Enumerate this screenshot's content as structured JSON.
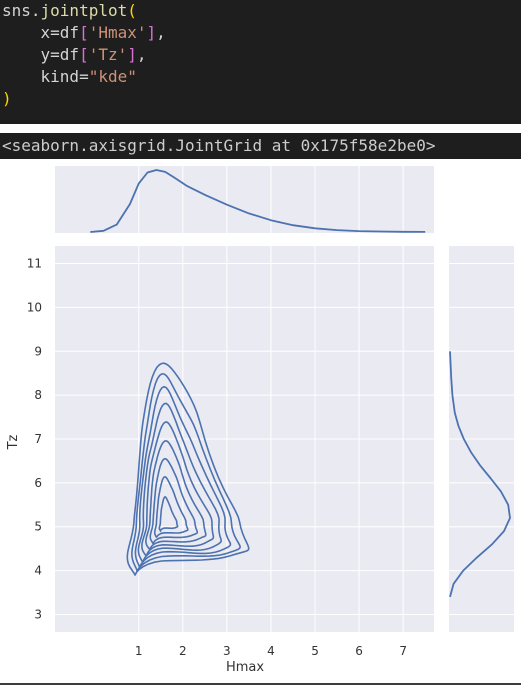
{
  "code_cell": {
    "lines": [
      [
        {
          "t": "sns.",
          "c": "tok-id"
        },
        {
          "t": "jointplot",
          "c": "tok-fn"
        },
        {
          "t": "(",
          "c": "tok-paren"
        }
      ],
      [
        {
          "t": "    x=df",
          "c": "tok-id"
        },
        {
          "t": "[",
          "c": "tok-br"
        },
        {
          "t": "'Hmax'",
          "c": "tok-str"
        },
        {
          "t": "]",
          "c": "tok-br"
        },
        {
          "t": ",",
          "c": "tok-id"
        }
      ],
      [
        {
          "t": "    y=df",
          "c": "tok-id"
        },
        {
          "t": "[",
          "c": "tok-br"
        },
        {
          "t": "'Tz'",
          "c": "tok-str"
        },
        {
          "t": "]",
          "c": "tok-br"
        },
        {
          "t": ",",
          "c": "tok-id"
        }
      ],
      [
        {
          "t": "    kind=",
          "c": "tok-id"
        },
        {
          "t": "\"kde\"",
          "c": "tok-str"
        }
      ],
      [
        {
          "t": ")",
          "c": "tok-paren"
        }
      ]
    ]
  },
  "output": {
    "text": "<seaborn.axisgrid.JointGrid at 0x175f58e2be0>"
  },
  "colors": {
    "code_bg": "#1e1e1e",
    "plot_bg": "#eaeaf2",
    "grid": "#ffffff",
    "line": "#4c72b0"
  },
  "chart_data": {
    "type": "kde-jointplot",
    "xlabel": "Hmax",
    "ylabel": "Tz",
    "xlim": [
      -0.9,
      7.7
    ],
    "ylim": [
      2.6,
      11.4
    ],
    "x_ticks": [
      1,
      2,
      3,
      4,
      5,
      6,
      7
    ],
    "y_ticks": [
      3,
      4,
      5,
      6,
      7,
      8,
      9,
      10,
      11
    ],
    "grid": true,
    "joint_contours": {
      "center": [
        1.6,
        5.1
      ],
      "levels": 9,
      "outer_extent": {
        "x": [
          0.9,
          5.0
        ],
        "y": [
          3.4,
          8.1
        ]
      }
    },
    "marginal_x": {
      "x": [
        -0.1,
        0.2,
        0.5,
        0.8,
        1.0,
        1.2,
        1.4,
        1.6,
        1.8,
        2.1,
        2.5,
        3.0,
        3.5,
        4.0,
        4.5,
        5.0,
        5.5,
        6.0,
        6.5,
        7.0,
        7.5
      ],
      "density": [
        0.0,
        0.02,
        0.12,
        0.45,
        0.78,
        0.96,
        1.0,
        0.97,
        0.88,
        0.74,
        0.6,
        0.44,
        0.3,
        0.19,
        0.11,
        0.06,
        0.03,
        0.015,
        0.008,
        0.004,
        0.002
      ]
    },
    "marginal_y": {
      "y": [
        3.4,
        3.7,
        4.0,
        4.3,
        4.6,
        4.9,
        5.2,
        5.5,
        5.8,
        6.1,
        6.4,
        6.7,
        7.0,
        7.3,
        7.6,
        8.0,
        8.4,
        8.8,
        9.0
      ],
      "density": [
        0.0,
        0.06,
        0.22,
        0.45,
        0.7,
        0.9,
        1.0,
        0.97,
        0.85,
        0.68,
        0.5,
        0.35,
        0.23,
        0.14,
        0.08,
        0.04,
        0.02,
        0.006,
        0.0
      ]
    }
  }
}
